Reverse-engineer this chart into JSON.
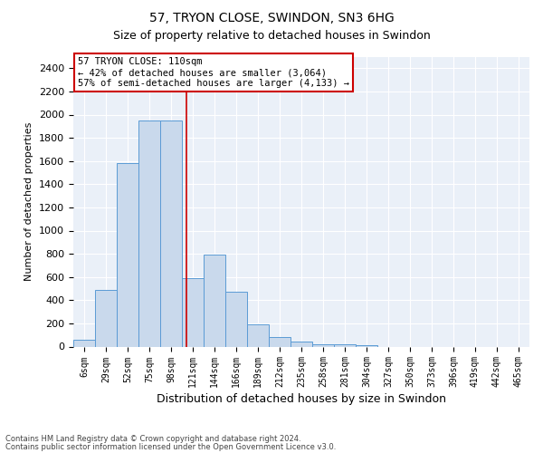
{
  "title1": "57, TRYON CLOSE, SWINDON, SN3 6HG",
  "title2": "Size of property relative to detached houses in Swindon",
  "xlabel": "Distribution of detached houses by size in Swindon",
  "ylabel": "Number of detached properties",
  "footer1": "Contains HM Land Registry data © Crown copyright and database right 2024.",
  "footer2": "Contains public sector information licensed under the Open Government Licence v3.0.",
  "bar_labels": [
    "6sqm",
    "29sqm",
    "52sqm",
    "75sqm",
    "98sqm",
    "121sqm",
    "144sqm",
    "166sqm",
    "189sqm",
    "212sqm",
    "235sqm",
    "258sqm",
    "281sqm",
    "304sqm",
    "327sqm",
    "350sqm",
    "373sqm",
    "396sqm",
    "419sqm",
    "442sqm",
    "465sqm"
  ],
  "bar_values": [
    60,
    490,
    1580,
    1950,
    1950,
    590,
    790,
    470,
    190,
    80,
    40,
    20,
    20,
    10,
    0,
    0,
    0,
    0,
    0,
    0,
    0
  ],
  "bar_color": "#c9d9ec",
  "bar_edge_color": "#5b9bd5",
  "bg_color": "#eaf0f8",
  "grid_color": "#ffffff",
  "vline_x": 4.7,
  "vline_color": "#cc0000",
  "annotation_text": "57 TRYON CLOSE: 110sqm\n← 42% of detached houses are smaller (3,064)\n57% of semi-detached houses are larger (4,133) →",
  "annotation_box_color": "#ffffff",
  "annotation_box_edge": "#cc0000",
  "ylim_max": 2500,
  "yticks": [
    0,
    200,
    400,
    600,
    800,
    1000,
    1200,
    1400,
    1600,
    1800,
    2000,
    2200,
    2400
  ],
  "title1_fontsize": 10,
  "title2_fontsize": 9,
  "ylabel_fontsize": 8,
  "xlabel_fontsize": 9,
  "tick_fontsize": 8,
  "xtick_fontsize": 7,
  "annot_fontsize": 7.5,
  "footer_fontsize": 6
}
